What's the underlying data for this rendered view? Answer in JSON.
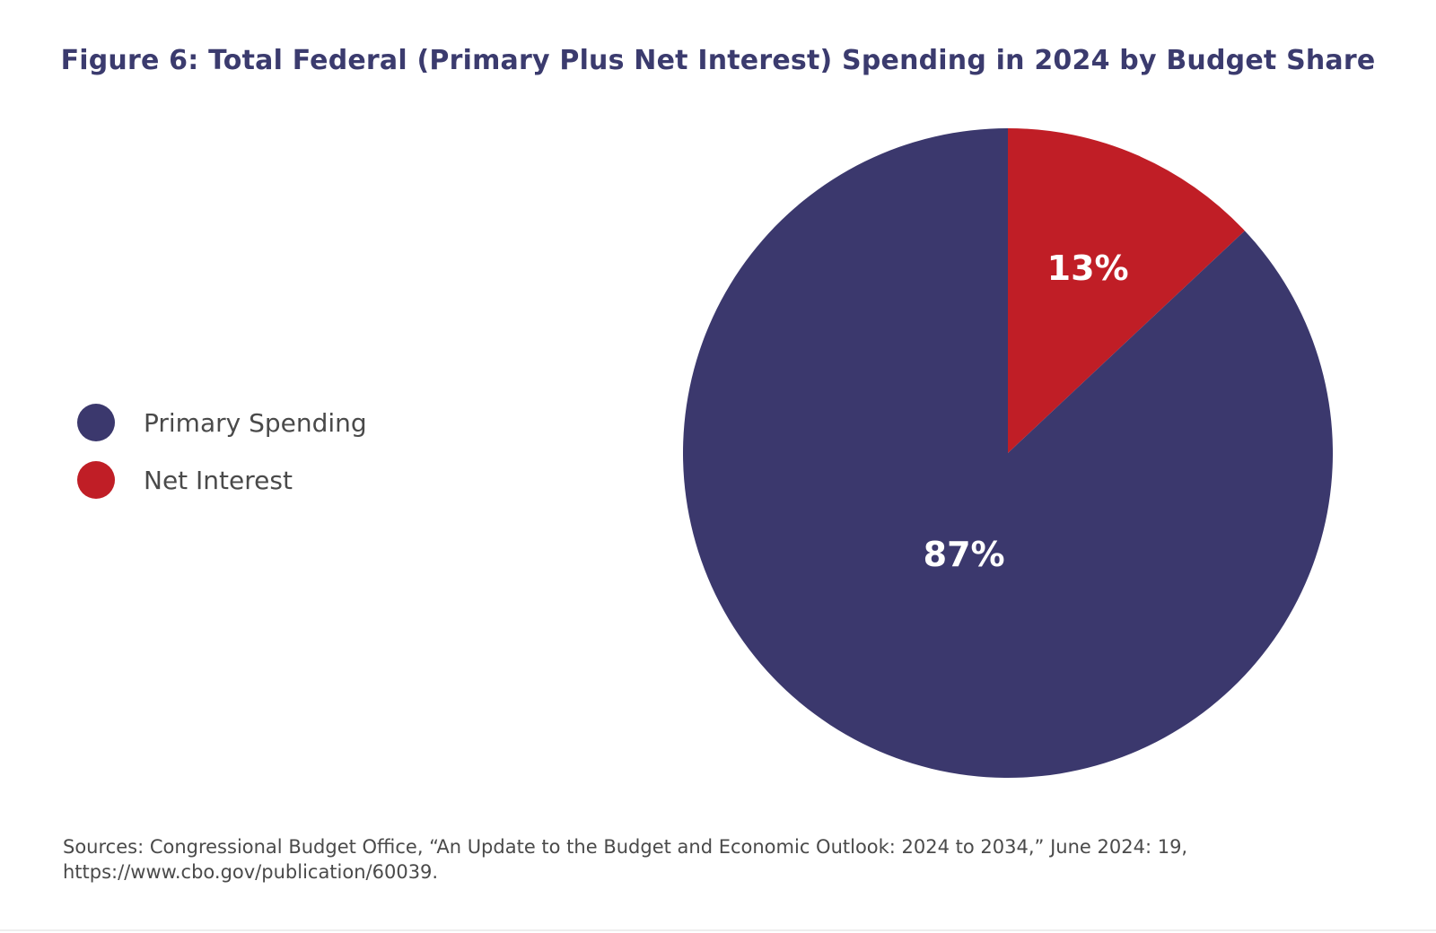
{
  "chart_data": {
    "type": "pie",
    "title": "Figure 6: Total Federal (Primary Plus Net Interest) Spending in 2024 by Budget Share",
    "slices": [
      {
        "name": "Net Interest",
        "value": 13,
        "label": "13%",
        "color": "#c01e26"
      },
      {
        "name": "Primary Spending",
        "value": 87,
        "label": "87%",
        "color": "#3b386d"
      }
    ],
    "legend": {
      "position": "left",
      "items": [
        {
          "name": "Primary Spending",
          "color": "#3b386d"
        },
        {
          "name": "Net Interest",
          "color": "#c01e26"
        }
      ]
    }
  },
  "source": {
    "line1": "Sources: Congressional Budget Office, “An Update to the Budget and Economic Outlook: 2024 to 2034,” June 2024: 19,",
    "line2": "https://www.cbo.gov/publication/60039."
  }
}
